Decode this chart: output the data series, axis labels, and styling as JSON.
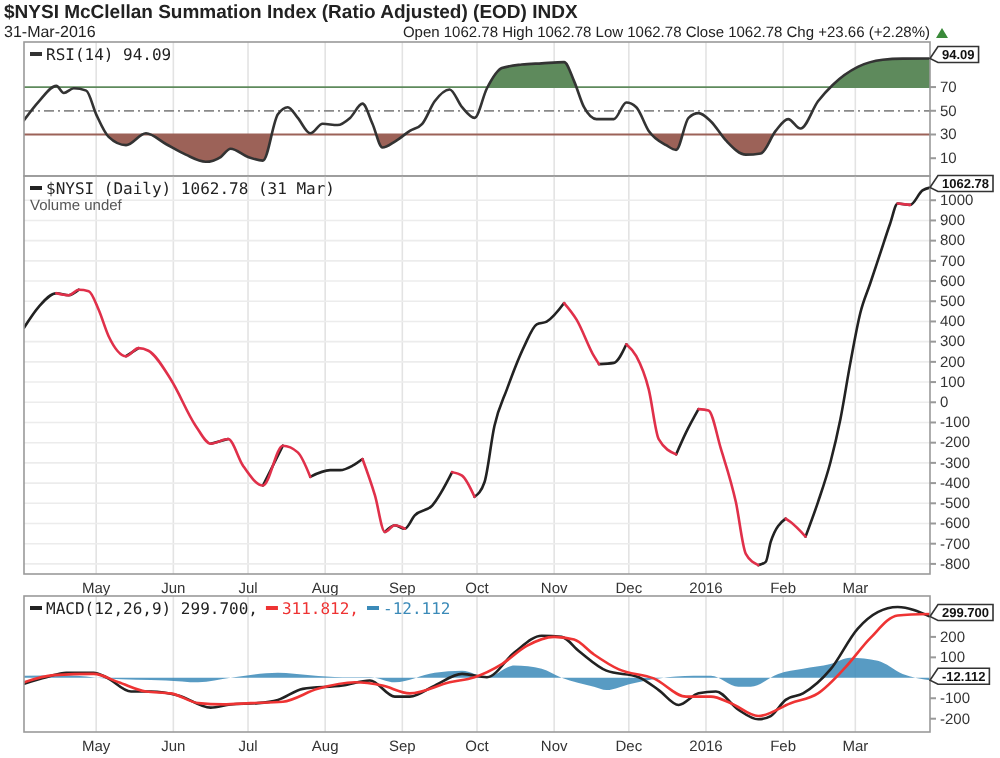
{
  "chart_data": [
    {
      "type": "line",
      "title": "$NYSI McClellan Summation Index (Ratio Adjusted) (EOD) INDX",
      "subtitle": "31-Mar-2016",
      "annotations": [
        "Open 1062.78  High 1062.78  Low 1062.78  Close 1062.78  Chg +23.66 (+2.28%)",
        {
          "text": "94.09",
          "x": "2016-03-31",
          "y": 94.09
        }
      ],
      "x": [
        "2015-04-02",
        "2015-04-08",
        "2015-04-15",
        "2015-04-18",
        "2015-04-22",
        "2015-04-27",
        "2015-05-01",
        "2015-05-06",
        "2015-05-13",
        "2015-05-21",
        "2015-05-29",
        "2015-06-06",
        "2015-06-14",
        "2015-06-20",
        "2015-06-24",
        "2015-07-01",
        "2015-07-07",
        "2015-07-13",
        "2015-07-17",
        "2015-07-21",
        "2015-07-26",
        "2015-07-31",
        "2015-08-06",
        "2015-08-11",
        "2015-08-16",
        "2015-08-20",
        "2015-08-24",
        "2015-08-29",
        "2015-09-04",
        "2015-09-09",
        "2015-09-14",
        "2015-09-20",
        "2015-09-25",
        "2015-09-30",
        "2015-10-05",
        "2015-10-11",
        "2015-10-19",
        "2015-10-27",
        "2015-11-05",
        "2015-11-09",
        "2015-11-13",
        "2015-11-18",
        "2015-11-25",
        "2015-11-30",
        "2015-12-04",
        "2015-12-09",
        "2015-12-16",
        "2015-12-20",
        "2015-12-25",
        "2015-12-29",
        "2016-01-03",
        "2016-01-09",
        "2016-01-17",
        "2016-01-23",
        "2016-01-29",
        "2016-02-03",
        "2016-02-08",
        "2016-02-15",
        "2016-02-21",
        "2016-03-02",
        "2016-03-12",
        "2016-03-20",
        "2016-03-31"
      ],
      "series": [
        {
          "name": "RSI(14) 94.09",
          "color": "#333333",
          "values": [
            42,
            58,
            71,
            65,
            69,
            67,
            47,
            28,
            21,
            31,
            22,
            13,
            7,
            11,
            18,
            11,
            8,
            47,
            53,
            44,
            31,
            39,
            38,
            44,
            56,
            39,
            19,
            24,
            33,
            39,
            58,
            68,
            53,
            44,
            69,
            86,
            89,
            90,
            91,
            75,
            53,
            43,
            43,
            57,
            53,
            33,
            21,
            17,
            44,
            48,
            41,
            25,
            13,
            14,
            33,
            43,
            35,
            58,
            72,
            87,
            93,
            94,
            94.09
          ]
        }
      ],
      "xlim": [
        "2015-04-02",
        "2016-03-31"
      ],
      "ylim": [
        -5,
        108
      ],
      "yticks": [
        10,
        30,
        50,
        70
      ],
      "tick_labels": "y",
      "grid": "x",
      "legend": "top left",
      "xticks": [
        {
          "value": "2015-05-01",
          "label": null
        },
        {
          "value": "2015-06-01",
          "label": null
        },
        {
          "value": "2015-07-01",
          "label": null
        },
        {
          "value": "2015-08-01",
          "label": null
        },
        {
          "value": "2015-09-01",
          "label": null
        },
        {
          "value": "2015-10-01",
          "label": null
        },
        {
          "value": "2015-11-01",
          "label": null
        },
        {
          "value": "2015-12-01",
          "label": null
        },
        {
          "value": "2016-01-01",
          "label": null
        },
        {
          "value": "2016-02-01",
          "label": null
        },
        {
          "value": "2016-03-01",
          "label": null
        }
      ],
      "ref_lines": [
        {
          "axis": "y",
          "value": 70,
          "color": "#5e8a5c"
        },
        {
          "axis": "y",
          "value": 30,
          "color": "#9c6258"
        },
        {
          "axis": "y",
          "value": 50,
          "line_style": "dashed"
        }
      ]
    },
    {
      "type": "line",
      "annotations": [
        "Volume undef",
        {
          "text": "1062.78",
          "x": "2016-03-31",
          "y": 1062.78
        }
      ],
      "x": [
        "2015-04-02",
        "2015-04-08",
        "2015-04-15",
        "2015-04-20",
        "2015-04-24",
        "2015-04-28",
        "2015-05-02",
        "2015-05-06",
        "2015-05-13",
        "2015-05-18",
        "2015-05-22",
        "2015-05-31",
        "2015-06-10",
        "2015-06-16",
        "2015-06-23",
        "2015-06-29",
        "2015-07-07",
        "2015-07-15",
        "2015-07-21",
        "2015-07-26",
        "2015-08-03",
        "2015-08-07",
        "2015-08-12",
        "2015-08-16",
        "2015-08-21",
        "2015-08-25",
        "2015-08-29",
        "2015-09-02",
        "2015-09-06",
        "2015-09-13",
        "2015-09-21",
        "2015-09-25",
        "2015-09-30",
        "2015-10-04",
        "2015-10-08",
        "2015-10-13",
        "2015-10-20",
        "2015-10-25",
        "2015-10-29",
        "2015-11-05",
        "2015-11-10",
        "2015-11-17",
        "2015-11-19",
        "2015-11-25",
        "2015-11-30",
        "2015-12-04",
        "2015-12-09",
        "2015-12-13",
        "2015-12-20",
        "2015-12-24",
        "2015-12-29",
        "2016-01-02",
        "2016-01-07",
        "2016-01-13",
        "2016-01-17",
        "2016-01-22",
        "2016-01-25",
        "2016-01-27",
        "2016-02-02",
        "2016-02-04",
        "2016-02-10",
        "2016-02-15",
        "2016-02-20",
        "2016-02-24",
        "2016-02-28",
        "2016-03-03",
        "2016-03-07",
        "2016-03-11",
        "2016-03-15",
        "2016-03-18",
        "2016-03-23",
        "2016-03-28",
        "2016-03-31"
      ],
      "series": [
        {
          "name": "$NYSI (Daily) 1062.78 (31 Mar)",
          "color": "#222222",
          "values": [
            369,
            474,
            540,
            530,
            557,
            null,
            null,
            null,
            228,
            268,
            null,
            null,
            null,
            -205,
            -182,
            null,
            -412,
            -215,
            null,
            -369,
            -336,
            -336,
            -314,
            -281,
            null,
            -642,
            -609,
            -626,
            -560,
            -511,
            -346,
            null,
            -468,
            -396,
            -117,
            64,
            278,
            386,
            399,
            491,
            null,
            null,
            189,
            195,
            287,
            null,
            null,
            null,
            -258,
            -149,
            -34,
            null,
            null,
            null,
            null,
            -806,
            -790,
            -691,
            -576,
            null,
            -665,
            -494,
            -297,
            -84,
            195,
            442,
            589,
            737,
            885,
            984,
            977,
            1049,
            1062.78
          ]
        },
        {
          "color": "#e0304a",
          "values": [
            null,
            null,
            540,
            530,
            557,
            550,
            458,
            327,
            228,
            268,
            255,
            113,
            -117,
            -205,
            -182,
            -314,
            -412,
            -215,
            -248,
            -369,
            null,
            null,
            null,
            -281,
            -461,
            -642,
            -609,
            -626,
            null,
            null,
            -346,
            -363,
            -468,
            null,
            null,
            null,
            null,
            null,
            null,
            491,
            409,
            228,
            189,
            null,
            287,
            228,
            64,
            -182,
            -258,
            null,
            -34,
            -41,
            -231,
            -494,
            -750,
            -806,
            null,
            null,
            -576,
            -593,
            -665,
            null,
            null,
            null,
            null,
            null,
            null,
            null,
            null,
            984,
            977,
            null,
            null
          ]
        }
      ],
      "xlim": [
        "2015-04-02",
        "2016-03-31"
      ],
      "ylim": [
        -850,
        1120
      ],
      "yticks": [
        -800,
        -700,
        -600,
        -500,
        -400,
        -300,
        -200,
        -100,
        0,
        100,
        200,
        300,
        400,
        500,
        600,
        700,
        800,
        900,
        1000
      ],
      "xticks": [
        {
          "value": "2015-05-01",
          "label": "May"
        },
        {
          "value": "2015-06-01",
          "label": "Jun"
        },
        {
          "value": "2015-07-01",
          "label": "Jul"
        },
        {
          "value": "2015-08-01",
          "label": "Aug"
        },
        {
          "value": "2015-09-01",
          "label": "Sep"
        },
        {
          "value": "2015-10-01",
          "label": "Oct"
        },
        {
          "value": "2015-11-01",
          "label": "Nov"
        },
        {
          "value": "2015-12-01",
          "label": "Dec"
        },
        {
          "value": "2016-01-01",
          "label": "2016"
        },
        {
          "value": "2016-02-01",
          "label": "Feb"
        },
        {
          "value": "2016-03-01",
          "label": "Mar"
        }
      ],
      "grid": true,
      "legend": "top left"
    },
    {
      "type": "line",
      "annotations": [
        {
          "text": "299.700",
          "x": "2016-03-31",
          "y": 299.7
        },
        {
          "text": "-12.112",
          "x": "2016-03-31",
          "y": -12.112
        }
      ],
      "series": [
        {
          "name": "MACD(12,26,9) 299.700,",
          "color": "#222222",
          "x": [
            "2015-04-02",
            "2015-04-11",
            "2015-04-19",
            "2015-04-30",
            "2015-05-05",
            "2015-05-15",
            "2015-05-23",
            "2015-06-03",
            "2015-06-16",
            "2015-06-24",
            "2015-07-05",
            "2015-07-13",
            "2015-07-23",
            "2015-08-08",
            "2015-08-19",
            "2015-08-29",
            "2015-09-04",
            "2015-09-14",
            "2015-09-25",
            "2015-10-05",
            "2015-10-16",
            "2015-10-27",
            "2015-11-04",
            "2015-11-11",
            "2015-11-22",
            "2015-12-05",
            "2015-12-13",
            "2015-12-21",
            "2015-12-29",
            "2016-01-05",
            "2016-01-14",
            "2016-01-22",
            "2016-01-27",
            "2016-02-02",
            "2016-02-09",
            "2016-02-20",
            "2016-03-02",
            "2016-03-10",
            "2016-03-18",
            "2016-03-31"
          ],
          "values": [
            -29,
            3,
            25,
            25,
            3,
            -67,
            -67,
            -86,
            -146,
            -130,
            -124,
            -108,
            -54,
            -38,
            -13,
            -92,
            -92,
            -38,
            19,
            3,
            124,
            206,
            200,
            130,
            35,
            3,
            -60,
            -133,
            -76,
            -67,
            -156,
            -203,
            -187,
            -108,
            -76,
            41,
            241,
            321,
            346,
            299.7
          ]
        },
        {
          "name": "311.812,",
          "color": "#ee3333",
          "x": [
            "2015-04-02",
            "2015-04-14",
            "2015-04-30",
            "2015-05-10",
            "2015-05-21",
            "2015-05-31",
            "2015-06-11",
            "2015-06-21",
            "2015-07-02",
            "2015-07-15",
            "2015-07-29",
            "2015-08-13",
            "2015-08-24",
            "2015-09-04",
            "2015-09-20",
            "2015-09-30",
            "2015-10-11",
            "2015-10-21",
            "2015-11-01",
            "2015-11-09",
            "2015-11-17",
            "2015-11-27",
            "2015-12-11",
            "2015-12-24",
            "2016-01-03",
            "2016-01-11",
            "2016-01-22",
            "2016-02-04",
            "2016-02-15",
            "2016-02-26",
            "2016-03-07",
            "2016-03-18",
            "2016-03-31"
          ],
          "values": [
            -22,
            13,
            19,
            -22,
            -67,
            -76,
            -124,
            -130,
            -124,
            -117,
            -54,
            -22,
            -38,
            -76,
            -22,
            3,
            67,
            156,
            200,
            187,
            114,
            41,
            -3,
            -92,
            -92,
            -124,
            -187,
            -124,
            -76,
            51,
            194,
            305,
            311.812
          ]
        },
        {
          "name": "-12.112",
          "color": "#3b8ab8",
          "type": "area",
          "x": [
            "2015-04-02",
            "2015-04-19",
            "2015-05-05",
            "2015-05-29",
            "2015-06-11",
            "2015-06-24",
            "2015-07-13",
            "2015-07-26",
            "2015-08-08",
            "2015-08-19",
            "2015-08-29",
            "2015-09-14",
            "2015-09-25",
            "2015-10-05",
            "2015-10-16",
            "2015-10-27",
            "2015-11-04",
            "2015-11-17",
            "2015-11-22",
            "2015-12-02",
            "2015-12-13",
            "2015-12-27",
            "2016-01-03",
            "2016-01-14",
            "2016-01-19",
            "2016-01-30",
            "2016-02-09",
            "2016-02-20",
            "2016-02-28",
            "2016-03-10",
            "2016-03-20",
            "2016-03-31"
          ],
          "values": [
            10,
            13,
            -3,
            -13,
            -22,
            0,
            25,
            13,
            3,
            3,
            -22,
            25,
            35,
            3,
            60,
            44,
            0,
            -44,
            -60,
            -29,
            -3,
            10,
            10,
            -44,
            -44,
            19,
            44,
            67,
            98,
            83,
            19,
            -12.112
          ]
        }
      ],
      "xlim": [
        "2015-04-02",
        "2016-03-31"
      ],
      "ylim": [
        -265,
        400
      ],
      "yticks": [
        -200,
        -100,
        100,
        200
      ],
      "xticks": [
        {
          "value": "2015-05-01",
          "label": "May"
        },
        {
          "value": "2015-06-01",
          "label": "Jun"
        },
        {
          "value": "2015-07-01",
          "label": "Jul"
        },
        {
          "value": "2015-08-01",
          "label": "Aug"
        },
        {
          "value": "2015-09-01",
          "label": "Sep"
        },
        {
          "value": "2015-10-01",
          "label": "Oct"
        },
        {
          "value": "2015-11-01",
          "label": "Nov"
        },
        {
          "value": "2015-12-01",
          "label": "Dec"
        },
        {
          "value": "2016-01-01",
          "label": "2016"
        },
        {
          "value": "2016-02-01",
          "label": "Feb"
        },
        {
          "value": "2016-03-01",
          "label": "Mar"
        }
      ],
      "grid": "x",
      "legend": "top left"
    }
  ]
}
